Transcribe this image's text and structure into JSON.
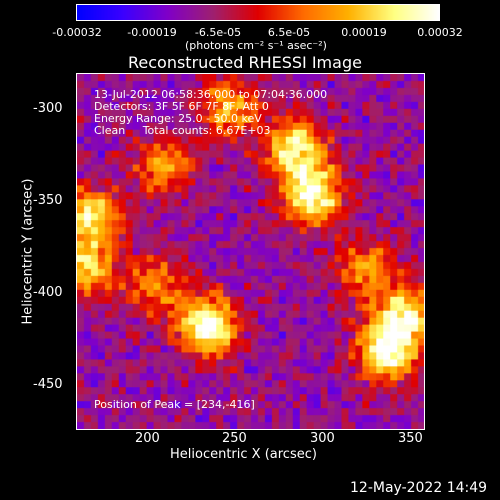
{
  "chart_data": {
    "type": "heatmap",
    "title": "Reconstructed RHESSI Image",
    "xlabel": "Heliocentric X (arcsec)",
    "ylabel": "Heliocentric Y (arcsec)",
    "xlim": [
      163,
      350
    ],
    "ylim": [
      -472,
      -280
    ],
    "x_ticks": [
      "200",
      "250",
      "300",
      "350"
    ],
    "y_ticks": [
      "-300",
      "-350",
      "-400",
      "-450"
    ],
    "colorbar": {
      "range": [
        -0.00032,
        0.00032
      ],
      "tick_labels": [
        "-0.00032",
        "-0.00019",
        "-6.5e-05",
        "6.5e-05",
        "0.00019",
        "0.00032"
      ],
      "units_label": "(photons cm⁻² s⁻¹ asec⁻²)",
      "colormap": [
        "#0000ff",
        "#3a00ff",
        "#8000c8",
        "#9e2070",
        "#e00000",
        "#ff6a00",
        "#ffb000",
        "#ffff80",
        "#ffffff"
      ]
    },
    "annotations": {
      "time_range": "13-Jul-2012 06:58:36.000 to 07:04:36.000",
      "detectors": "Detectors: 3F 5F 6F 7F 8F, Att 0",
      "energy_range": "Energy Range: 25.0 - 50.0 keV",
      "clean_line": "Clean     Total counts: 6.67E+03",
      "peak": "Position of Peak = [234,-416]"
    },
    "bright_sources": [
      {
        "x": 234,
        "y": -416,
        "strength": 1.0
      },
      {
        "x": 170,
        "y": -358,
        "strength": 0.8
      },
      {
        "x": 168,
        "y": -385,
        "strength": 0.65
      },
      {
        "x": 290,
        "y": -345,
        "strength": 0.95
      },
      {
        "x": 280,
        "y": -320,
        "strength": 0.8
      },
      {
        "x": 245,
        "y": -298,
        "strength": 0.6
      },
      {
        "x": 330,
        "y": -430,
        "strength": 0.95
      },
      {
        "x": 340,
        "y": -410,
        "strength": 0.75
      },
      {
        "x": 318,
        "y": -385,
        "strength": 0.55
      },
      {
        "x": 210,
        "y": -330,
        "strength": 0.55
      },
      {
        "x": 205,
        "y": -395,
        "strength": 0.5
      }
    ]
  },
  "footer": {
    "timestamp": "12-May-2022 14:49"
  }
}
